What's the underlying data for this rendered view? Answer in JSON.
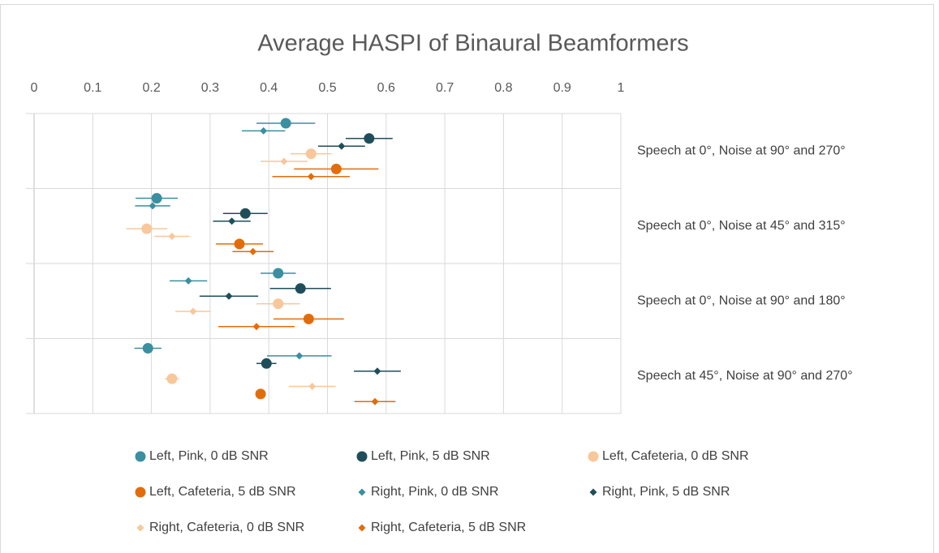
{
  "chart_data": {
    "type": "scatter",
    "title": "Average HASPI of Binaural Beamformers",
    "xlim": [
      0,
      1
    ],
    "xticks": [
      0,
      0.1,
      0.2,
      0.3,
      0.4,
      0.5,
      0.6,
      0.7,
      0.8,
      0.9,
      1
    ],
    "grid": true,
    "categories": [
      "Speech at 0°, Noise at 90° and 270°",
      "Speech at 0°, Noise at 45° and 315°",
      "Speech at 0°, Noise at 90° and 180°",
      "Speech at 45°, Noise at 90° and 270°"
    ],
    "series": [
      {
        "name": "Left, Pink, 0 dB SNR",
        "color": "#3a8fa0",
        "marker": "circle",
        "values": [
          0.429,
          0.209,
          0.416,
          0.194
        ],
        "errors": [
          0.05,
          0.036,
          0.03,
          0.023
        ]
      },
      {
        "name": "Right, Pink, 0 dB SNR",
        "color": "#3a8fa0",
        "marker": "diamond",
        "values": [
          0.391,
          0.202,
          0.263,
          0.452
        ],
        "errors": [
          0.037,
          0.03,
          0.032,
          0.055
        ]
      },
      {
        "name": "Left, Pink, 5 dB SNR",
        "color": "#1f4e5a",
        "marker": "circle",
        "values": [
          0.571,
          0.36,
          0.454,
          0.396
        ],
        "errors": [
          0.04,
          0.038,
          0.052,
          0.017
        ]
      },
      {
        "name": "Right, Pink, 5 dB SNR",
        "color": "#1f4e5a",
        "marker": "diamond",
        "values": [
          0.524,
          0.337,
          0.332,
          0.585
        ],
        "errors": [
          0.04,
          0.032,
          0.05,
          0.04
        ]
      },
      {
        "name": "Left, Cafeteria, 0 dB SNR",
        "color": "#f8c79a",
        "marker": "circle",
        "values": [
          0.472,
          0.192,
          0.416,
          0.235
        ],
        "errors": [
          0.035,
          0.035,
          0.037,
          0.012
        ]
      },
      {
        "name": "Right, Cafeteria, 0 dB SNR",
        "color": "#f8c79a",
        "marker": "diamond",
        "values": [
          0.426,
          0.235,
          0.271,
          0.474
        ],
        "errors": [
          0.04,
          0.03,
          0.03,
          0.04
        ]
      },
      {
        "name": "Left, Cafeteria, 5 dB SNR",
        "color": "#e36c0a",
        "marker": "circle",
        "values": [
          0.515,
          0.35,
          0.468,
          0.386
        ],
        "errors": [
          0.072,
          0.04,
          0.06,
          0.005
        ]
      },
      {
        "name": "Right, Cafeteria, 5 dB SNR",
        "color": "#e36c0a",
        "marker": "diamond",
        "values": [
          0.472,
          0.373,
          0.379,
          0.581
        ],
        "errors": [
          0.066,
          0.035,
          0.065,
          0.035
        ]
      }
    ],
    "legend_order": [
      0,
      2,
      4,
      6,
      1,
      3,
      5,
      7
    ]
  }
}
